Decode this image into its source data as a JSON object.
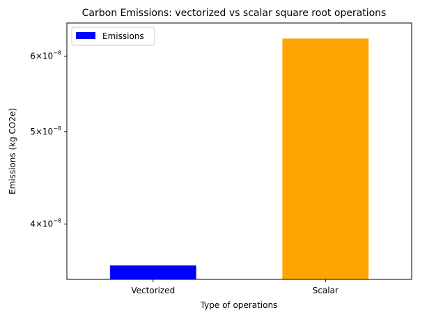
{
  "chart_data": {
    "type": "bar",
    "title": "Carbon Emissions: vectorized vs scalar square root operations",
    "xlabel": "Type of operations",
    "ylabel": "Emissions (kg CO2e)",
    "categories": [
      "Vectorized",
      "Scalar"
    ],
    "series": [
      {
        "name": "Emissions",
        "values": [
          3.62e-08,
          6.26e-08
        ],
        "colors": [
          "#0000ff",
          "#ffa500"
        ]
      }
    ],
    "yscale": "log",
    "ylim": [
      3.5e-08,
      6.5e-08
    ],
    "yticks": [
      {
        "value": 4e-08,
        "mantissa": "4",
        "exponent": "-8"
      },
      {
        "value": 5e-08,
        "mantissa": "5",
        "exponent": "-8"
      },
      {
        "value": 6e-08,
        "mantissa": "6",
        "exponent": "-8"
      }
    ],
    "legend": {
      "position": "top-left",
      "label": "Emissions",
      "color": "#0000ff"
    },
    "grid": false
  }
}
